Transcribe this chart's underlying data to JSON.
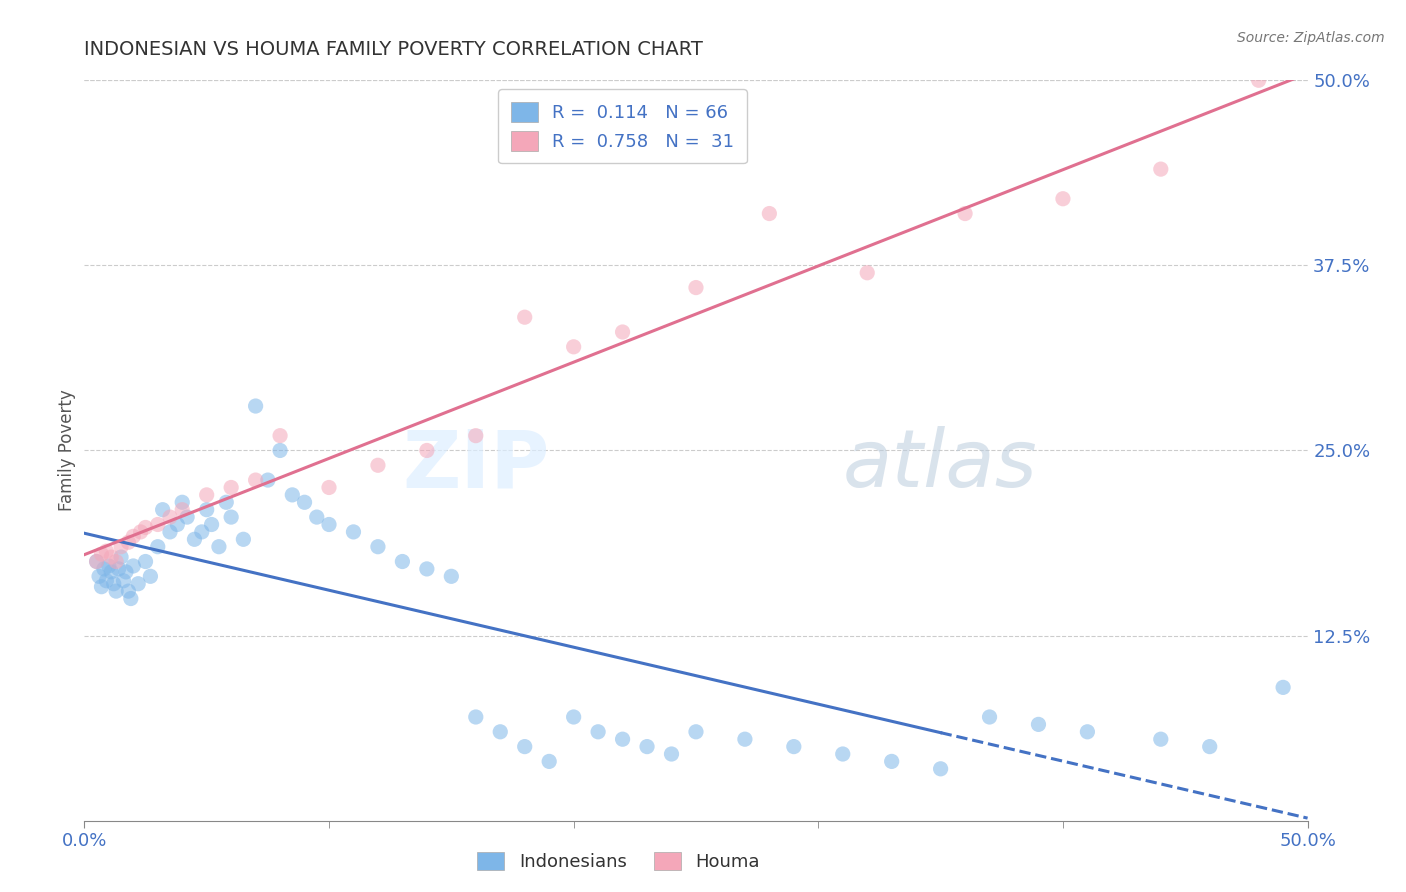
{
  "title": "INDONESIAN VS HOUMA FAMILY POVERTY CORRELATION CHART",
  "source": "Source: ZipAtlas.com",
  "ylabel": "Family Poverty",
  "xlim": [
    0.0,
    0.5
  ],
  "ylim": [
    0.0,
    0.5
  ],
  "yticks": [
    0.0,
    0.125,
    0.25,
    0.375,
    0.5
  ],
  "yticklabels": [
    "",
    "12.5%",
    "25.0%",
    "37.5%",
    "50.0%"
  ],
  "indonesian_color": "#7EB6E8",
  "houma_color": "#F4A7B9",
  "regression_blue": "#4472C4",
  "regression_pink": "#E07090",
  "legend_R_indonesian": "0.114",
  "legend_N_indonesian": "66",
  "legend_R_houma": "0.758",
  "legend_N_houma": "31",
  "background_color": "#FFFFFF",
  "grid_color": "#CCCCCC",
  "indo_x": [
    0.005,
    0.006,
    0.007,
    0.008,
    0.009,
    0.01,
    0.011,
    0.012,
    0.013,
    0.014,
    0.015,
    0.016,
    0.017,
    0.018,
    0.019,
    0.02,
    0.022,
    0.025,
    0.027,
    0.03,
    0.032,
    0.035,
    0.038,
    0.04,
    0.042,
    0.045,
    0.048,
    0.05,
    0.052,
    0.055,
    0.058,
    0.06,
    0.065,
    0.07,
    0.075,
    0.08,
    0.085,
    0.09,
    0.095,
    0.1,
    0.11,
    0.12,
    0.13,
    0.14,
    0.15,
    0.16,
    0.17,
    0.18,
    0.19,
    0.2,
    0.21,
    0.22,
    0.23,
    0.24,
    0.25,
    0.27,
    0.29,
    0.31,
    0.33,
    0.35,
    0.37,
    0.39,
    0.41,
    0.44,
    0.46,
    0.49
  ],
  "indo_y": [
    0.175,
    0.165,
    0.158,
    0.17,
    0.162,
    0.172,
    0.168,
    0.16,
    0.155,
    0.17,
    0.178,
    0.162,
    0.168,
    0.155,
    0.15,
    0.172,
    0.16,
    0.175,
    0.165,
    0.185,
    0.21,
    0.195,
    0.2,
    0.215,
    0.205,
    0.19,
    0.195,
    0.21,
    0.2,
    0.185,
    0.215,
    0.205,
    0.19,
    0.28,
    0.23,
    0.25,
    0.22,
    0.215,
    0.205,
    0.2,
    0.195,
    0.185,
    0.175,
    0.17,
    0.165,
    0.07,
    0.06,
    0.05,
    0.04,
    0.07,
    0.06,
    0.055,
    0.05,
    0.045,
    0.06,
    0.055,
    0.05,
    0.045,
    0.04,
    0.035,
    0.07,
    0.065,
    0.06,
    0.055,
    0.05,
    0.09
  ],
  "houma_x": [
    0.005,
    0.007,
    0.009,
    0.011,
    0.013,
    0.015,
    0.018,
    0.02,
    0.023,
    0.025,
    0.03,
    0.035,
    0.04,
    0.05,
    0.06,
    0.07,
    0.08,
    0.1,
    0.12,
    0.14,
    0.16,
    0.18,
    0.2,
    0.22,
    0.25,
    0.28,
    0.32,
    0.36,
    0.4,
    0.44,
    0.48
  ],
  "houma_y": [
    0.175,
    0.18,
    0.182,
    0.178,
    0.175,
    0.185,
    0.188,
    0.192,
    0.195,
    0.198,
    0.2,
    0.205,
    0.21,
    0.22,
    0.225,
    0.23,
    0.26,
    0.225,
    0.24,
    0.25,
    0.26,
    0.34,
    0.32,
    0.33,
    0.36,
    0.41,
    0.37,
    0.41,
    0.42,
    0.44,
    0.5
  ]
}
